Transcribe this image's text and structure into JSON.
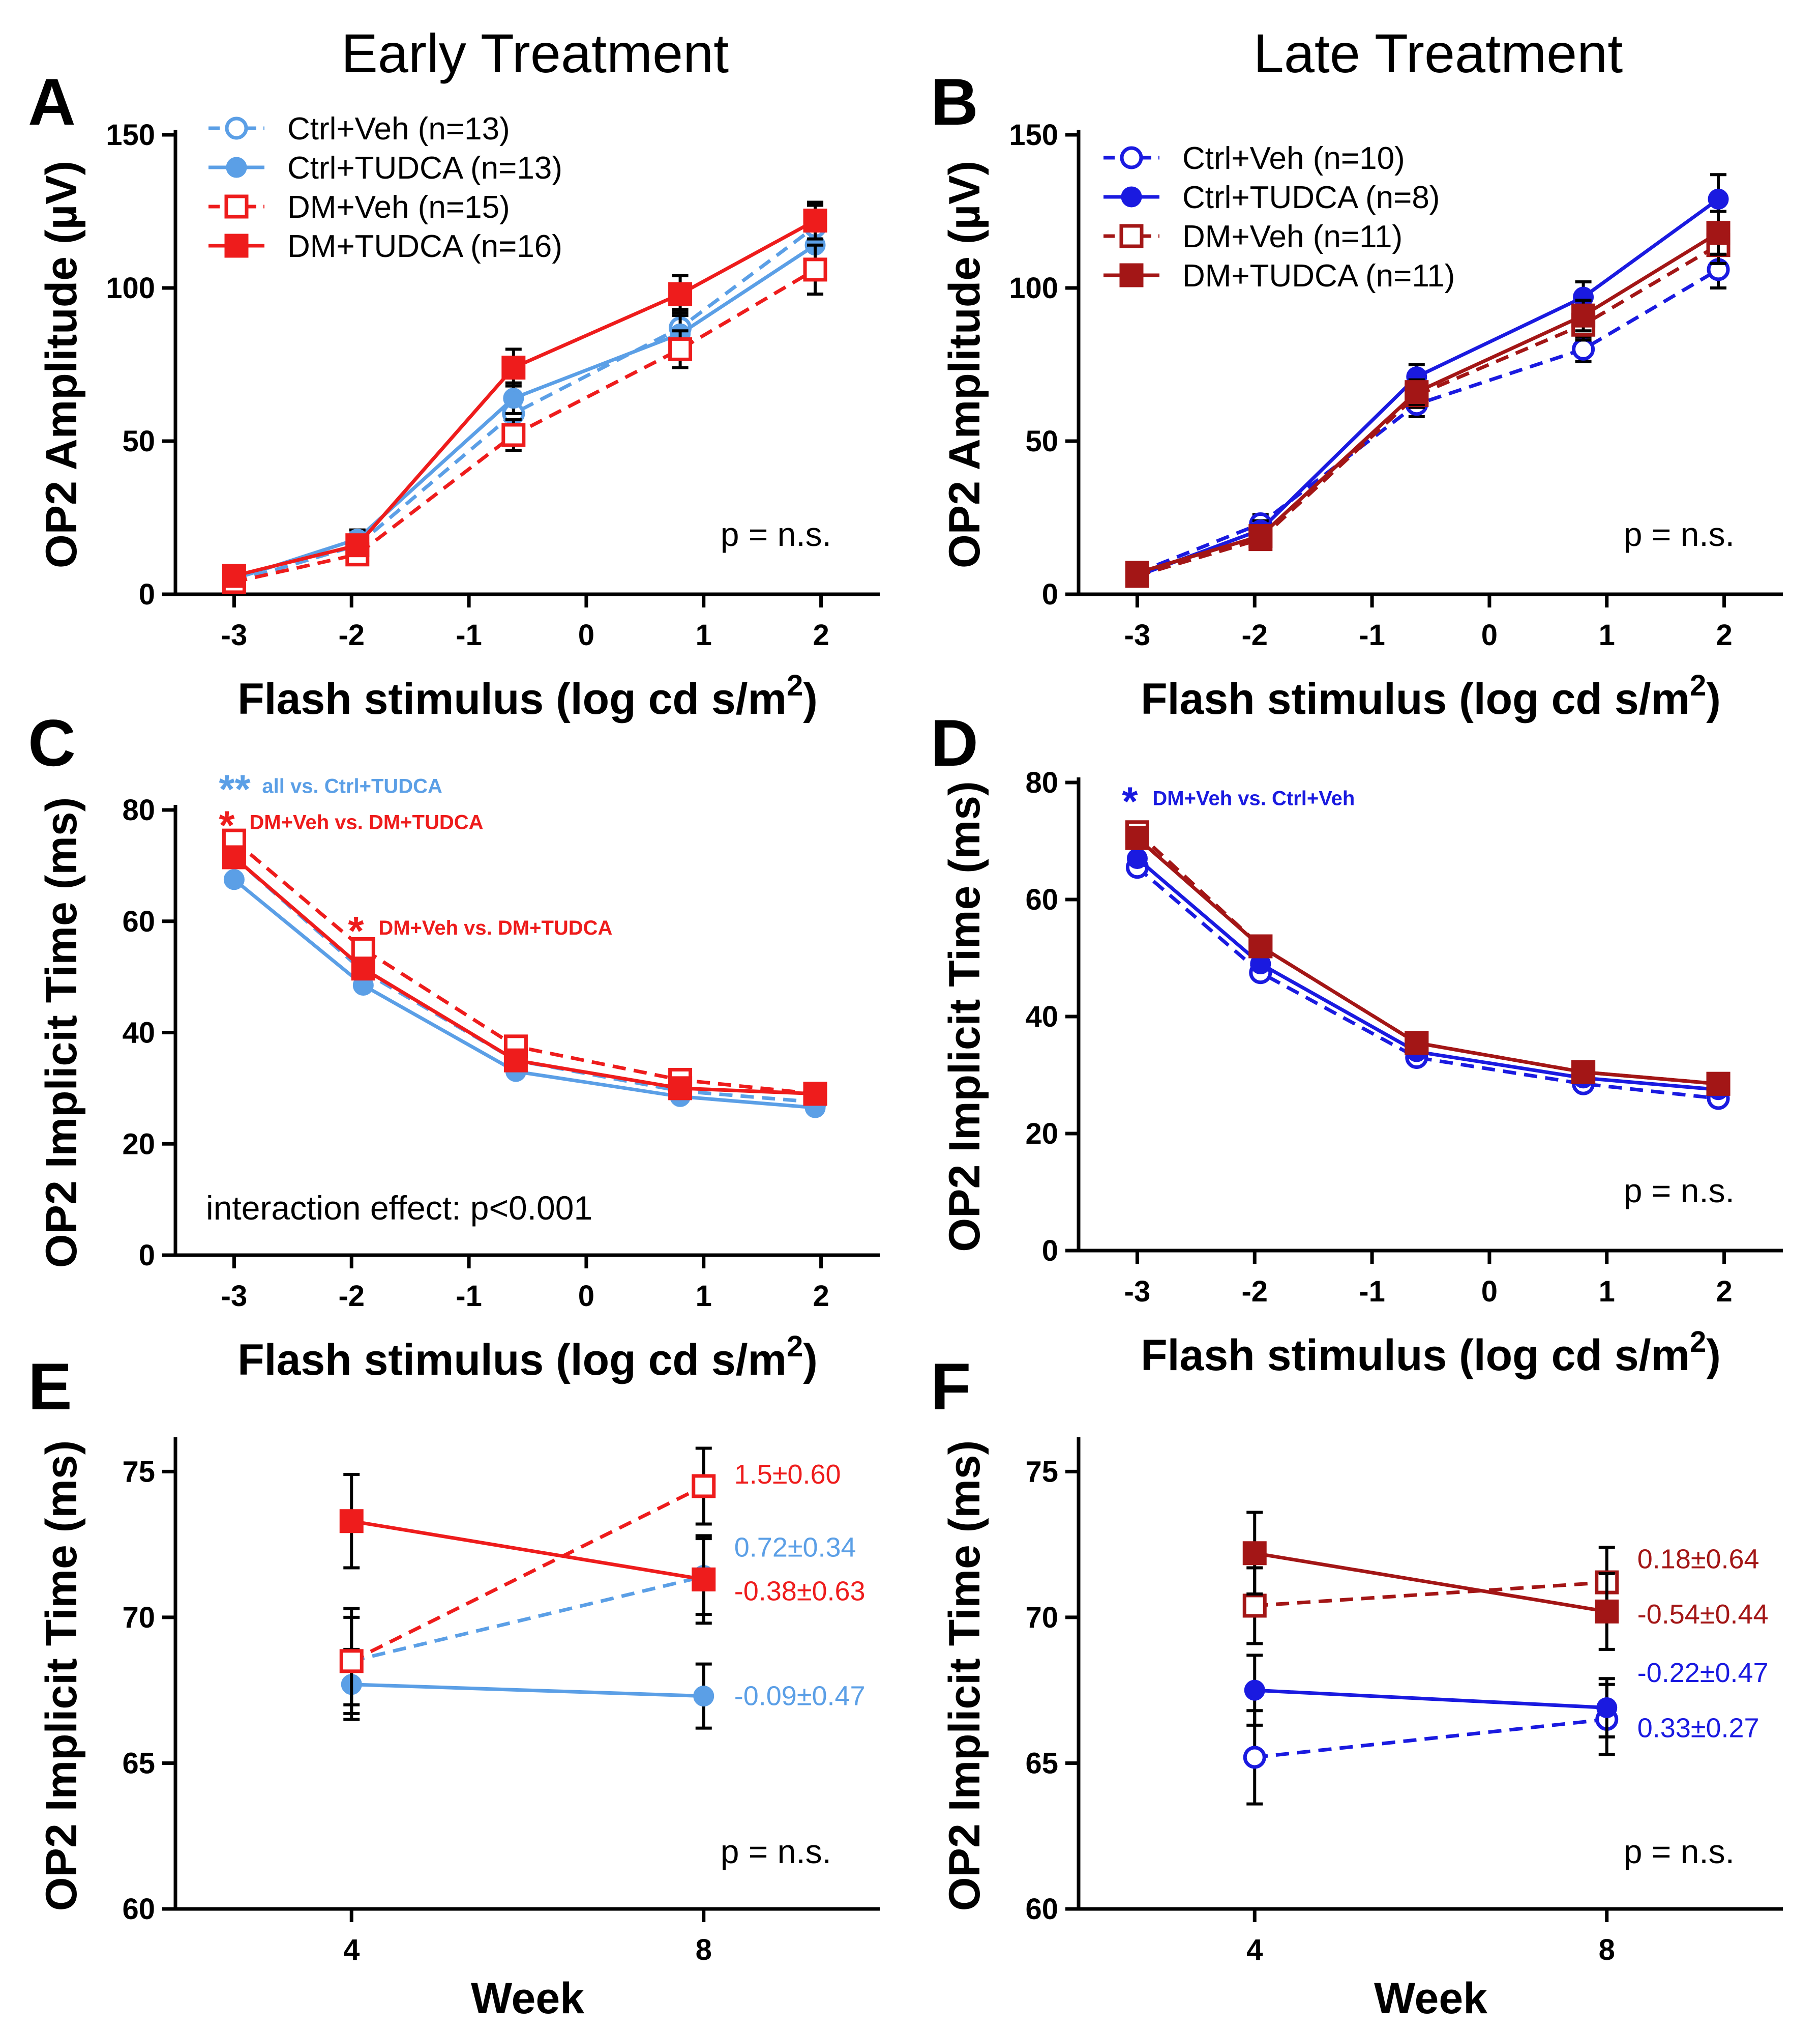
{
  "figure": {
    "title_left": "Early Treatment",
    "title_right": "Late Treatment",
    "colors": {
      "light_blue": "#5b9fe6",
      "red": "#ee1c1c",
      "blue": "#1a1ae0",
      "dark_red": "#a31616"
    }
  },
  "chart_data": [
    {
      "panel": "A",
      "type": "line",
      "xlabel": "Flash stimulus (log cd s/m",
      "xlabel_sup": "2",
      "xlabel_end": ")",
      "ylabel": "OP2 Amplitude  (µV)",
      "xlim": [
        -3.5,
        2.5
      ],
      "ylim": [
        0,
        150
      ],
      "xticks": [
        -3,
        -2,
        -1,
        0,
        1,
        2
      ],
      "xtick_labels": [
        "-3",
        "-2",
        "-1",
        "0",
        "1",
        "2"
      ],
      "yticks": [
        0,
        50,
        100,
        150
      ],
      "ytick_labels": [
        "0",
        "50",
        "100",
        "150"
      ],
      "x": [
        -3,
        -1.95,
        -0.62,
        0.8,
        1.95
      ],
      "legend": "top-left",
      "note": "p = n.s.",
      "series": [
        {
          "name": "Ctrl+Veh (n=13)",
          "color": "#5b9fe6",
          "dashed": true,
          "marker": "circle",
          "filled": false,
          "values": [
            4,
            16,
            59,
            87,
            120
          ],
          "err": [
            2,
            3,
            5,
            6,
            7
          ]
        },
        {
          "name": "Ctrl+TUDCA (n=13)",
          "color": "#5b9fe6",
          "dashed": false,
          "marker": "circle",
          "filled": true,
          "values": [
            5,
            18,
            64,
            85,
            114
          ],
          "err": [
            2,
            3,
            5,
            6,
            7
          ]
        },
        {
          "name": "DM+Veh (n=15)",
          "color": "#ee1c1c",
          "dashed": true,
          "marker": "square",
          "filled": false,
          "values": [
            4,
            13,
            52,
            80,
            106
          ],
          "err": [
            2,
            3,
            5,
            6,
            8
          ]
        },
        {
          "name": "DM+TUDCA (n=16)",
          "color": "#ee1c1c",
          "dashed": false,
          "marker": "square",
          "filled": true,
          "values": [
            6,
            16,
            74,
            98,
            122
          ],
          "err": [
            2,
            3,
            6,
            6,
            6
          ]
        }
      ],
      "annotations": []
    },
    {
      "panel": "B",
      "type": "line",
      "xlabel": "Flash stimulus (log cd s/m",
      "xlabel_sup": "2",
      "xlabel_end": ")",
      "ylabel": "OP2 Amplitude  (µV)",
      "xlim": [
        -3.5,
        2.5
      ],
      "ylim": [
        0,
        150
      ],
      "xticks": [
        -3,
        -2,
        -1,
        0,
        1,
        2
      ],
      "xtick_labels": [
        "-3",
        "-2",
        "-1",
        "0",
        "1",
        "2"
      ],
      "yticks": [
        0,
        50,
        100,
        150
      ],
      "ytick_labels": [
        "0",
        "50",
        "100",
        "150"
      ],
      "x": [
        -3,
        -1.95,
        -0.62,
        0.8,
        1.95
      ],
      "legend": "top-left",
      "note": "p = n.s.",
      "series": [
        {
          "name": "Ctrl+Veh (n=10)",
          "color": "#1a1ae0",
          "dashed": true,
          "marker": "circle",
          "filled": false,
          "values": [
            7,
            23,
            62,
            80,
            106
          ],
          "err": [
            2,
            3,
            4,
            4,
            6
          ]
        },
        {
          "name": "Ctrl+TUDCA (n=8)",
          "color": "#1a1ae0",
          "dashed": false,
          "marker": "circle",
          "filled": true,
          "values": [
            6,
            21,
            71,
            97,
            129
          ],
          "err": [
            2,
            3,
            4,
            5,
            8
          ]
        },
        {
          "name": "DM+Veh (n=11)",
          "color": "#a31616",
          "dashed": true,
          "marker": "square",
          "filled": false,
          "values": [
            6,
            18,
            65,
            88,
            114
          ],
          "err": [
            2,
            3,
            4,
            5,
            6
          ]
        },
        {
          "name": "DM+TUDCA (n=11)",
          "color": "#a31616",
          "dashed": false,
          "marker": "square",
          "filled": true,
          "values": [
            7,
            19,
            66,
            91,
            118
          ],
          "err": [
            2,
            3,
            4,
            5,
            7
          ]
        }
      ],
      "annotations": []
    },
    {
      "panel": "C",
      "type": "line",
      "xlabel": "Flash stimulus (log cd s/m",
      "xlabel_sup": "2",
      "xlabel_end": ")",
      "ylabel": "OP2 Implicit Time (ms)",
      "xlim": [
        -3.5,
        2.5
      ],
      "ylim": [
        0,
        80
      ],
      "xticks": [
        -3,
        -2,
        -1,
        0,
        1,
        2
      ],
      "xtick_labels": [
        "-3",
        "-2",
        "-1",
        "0",
        "1",
        "2"
      ],
      "yticks": [
        0,
        20,
        40,
        60,
        80
      ],
      "ytick_labels": [
        "0",
        "20",
        "40",
        "60",
        "80"
      ],
      "x": [
        -3,
        -1.9,
        -0.6,
        0.8,
        1.95
      ],
      "note": "interaction effect: p<0.001",
      "series": [
        {
          "name": "Ctrl+Veh",
          "color": "#5b9fe6",
          "dashed": true,
          "marker": "circle",
          "filled": false,
          "values": [
            71.5,
            51,
            35,
            29.5,
            27.5
          ]
        },
        {
          "name": "Ctrl+TUDCA",
          "color": "#5b9fe6",
          "dashed": false,
          "marker": "circle",
          "filled": true,
          "values": [
            67.5,
            48.5,
            33,
            28.5,
            26.5
          ]
        },
        {
          "name": "DM+Veh",
          "color": "#ee1c1c",
          "dashed": true,
          "marker": "square",
          "filled": false,
          "values": [
            74.5,
            55,
            37.5,
            31.5,
            29
          ]
        },
        {
          "name": "DM+TUDCA",
          "color": "#ee1c1c",
          "dashed": false,
          "marker": "square",
          "filled": true,
          "values": [
            71.5,
            51.5,
            35,
            30,
            29
          ]
        }
      ],
      "annotations": [
        {
          "star": "**",
          "text": "all vs. Ctrl+TUDCA",
          "color": "#5b9fe6",
          "x": -3,
          "y": 84
        },
        {
          "star": "*",
          "text": "DM+Veh vs. DM+TUDCA",
          "color": "#ee1c1c",
          "x": -3,
          "y": 77.5
        },
        {
          "star": "*",
          "text": "DM+Veh vs. DM+TUDCA",
          "color": "#ee1c1c",
          "x": -1.9,
          "y": 58.5
        }
      ]
    },
    {
      "panel": "D",
      "type": "line",
      "xlabel": "Flash stimulus (log cd s/m",
      "xlabel_sup": "2",
      "xlabel_end": ")",
      "ylabel": "OP2 Implicit Time (ms)",
      "xlim": [
        -3.5,
        2.5
      ],
      "ylim": [
        0,
        80
      ],
      "xticks": [
        -3,
        -2,
        -1,
        0,
        1,
        2
      ],
      "xtick_labels": [
        "-3",
        "-2",
        "-1",
        "0",
        "1",
        "2"
      ],
      "yticks": [
        0,
        20,
        40,
        60,
        80
      ],
      "ytick_labels": [
        "0",
        "20",
        "40",
        "60",
        "80"
      ],
      "x": [
        -3,
        -1.95,
        -0.62,
        0.8,
        1.95
      ],
      "note": "p = n.s.",
      "series": [
        {
          "name": "Ctrl+Veh",
          "color": "#1a1ae0",
          "dashed": true,
          "marker": "circle",
          "filled": false,
          "values": [
            65.5,
            47.5,
            33,
            28.5,
            26
          ]
        },
        {
          "name": "Ctrl+TUDCA",
          "color": "#1a1ae0",
          "dashed": false,
          "marker": "circle",
          "filled": true,
          "values": [
            67,
            49,
            34,
            29.5,
            27.5
          ]
        },
        {
          "name": "DM+Veh",
          "color": "#a31616",
          "dashed": true,
          "marker": "square",
          "filled": false,
          "values": [
            71.5,
            52,
            35.5,
            30.5,
            28.5
          ]
        },
        {
          "name": "DM+TUDCA",
          "color": "#a31616",
          "dashed": false,
          "marker": "square",
          "filled": true,
          "values": [
            70.5,
            52,
            35.5,
            30.5,
            28.5
          ]
        }
      ],
      "annotations": [
        {
          "star": "*",
          "text": "DM+Veh vs. Ctrl+Veh",
          "color": "#1a1ae0",
          "x": -3,
          "y": 77
        }
      ]
    },
    {
      "panel": "E",
      "type": "line",
      "xlabel": "Week",
      "ylabel": "OP2 Implicit Time (ms)",
      "xlim": [
        2,
        10
      ],
      "ylim": [
        60,
        76
      ],
      "xticks": [
        4,
        8
      ],
      "xtick_labels": [
        "4",
        "8"
      ],
      "yticks": [
        60,
        65,
        70,
        75
      ],
      "ytick_labels": [
        "60",
        "65",
        "70",
        "75"
      ],
      "x": [
        4,
        8
      ],
      "note": "p = n.s.",
      "series": [
        {
          "name": "Ctrl+Veh",
          "color": "#5b9fe6",
          "dashed": true,
          "marker": "circle",
          "filled": false,
          "values": [
            68.5,
            71.4
          ],
          "err": [
            1.5,
            1.3
          ],
          "label": "0.72±0.34",
          "label_y": 72.4
        },
        {
          "name": "Ctrl+TUDCA",
          "color": "#5b9fe6",
          "dashed": false,
          "marker": "circle",
          "filled": true,
          "values": [
            67.7,
            67.3
          ],
          "err": [
            1.2,
            1.1
          ],
          "label": "-0.09±0.47",
          "label_y": 67.3
        },
        {
          "name": "DM+Veh",
          "color": "#ee1c1c",
          "dashed": true,
          "marker": "square",
          "filled": false,
          "values": [
            68.5,
            74.5
          ],
          "err": [
            1.8,
            1.3
          ],
          "label": "1.5±0.60",
          "label_y": 74.9
        },
        {
          "name": "DM+TUDCA",
          "color": "#ee1c1c",
          "dashed": false,
          "marker": "square",
          "filled": true,
          "values": [
            73.3,
            71.3
          ],
          "err": [
            1.6,
            1.5
          ],
          "label": "-0.38±0.63",
          "label_y": 70.9
        }
      ],
      "annotations": []
    },
    {
      "panel": "F",
      "type": "line",
      "xlabel": "Week",
      "ylabel": "OP2 Implicit Time (ms)",
      "xlim": [
        2,
        10
      ],
      "ylim": [
        60,
        76
      ],
      "xticks": [
        4,
        8
      ],
      "xtick_labels": [
        "4",
        "8"
      ],
      "yticks": [
        60,
        65,
        70,
        75
      ],
      "ytick_labels": [
        "60",
        "65",
        "70",
        "75"
      ],
      "x": [
        4,
        8
      ],
      "note": "p = n.s.",
      "series": [
        {
          "name": "Ctrl+Veh",
          "color": "#1a1ae0",
          "dashed": true,
          "marker": "circle",
          "filled": false,
          "values": [
            65.2,
            66.5
          ],
          "err": [
            1.6,
            1.2
          ],
          "label": "0.33±0.27",
          "label_y": 66.2
        },
        {
          "name": "Ctrl+TUDCA",
          "color": "#1a1ae0",
          "dashed": false,
          "marker": "circle",
          "filled": true,
          "values": [
            67.5,
            66.9
          ],
          "err": [
            1.2,
            1.0
          ],
          "label": "-0.22±0.47",
          "label_y": 68.1
        },
        {
          "name": "DM+Veh",
          "color": "#a31616",
          "dashed": true,
          "marker": "square",
          "filled": false,
          "values": [
            70.4,
            71.2
          ],
          "err": [
            1.3,
            1.2
          ],
          "label": "0.18±0.64",
          "label_y": 72.0
        },
        {
          "name": "DM+TUDCA",
          "color": "#a31616",
          "dashed": false,
          "marker": "square",
          "filled": true,
          "values": [
            72.2,
            70.2
          ],
          "err": [
            1.4,
            1.3
          ],
          "label": "-0.54±0.44",
          "label_y": 70.1
        }
      ],
      "annotations": []
    }
  ]
}
